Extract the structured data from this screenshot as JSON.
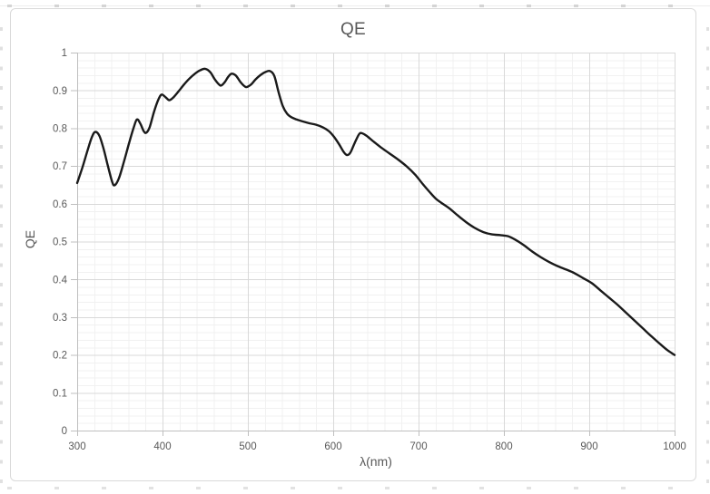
{
  "chart_data": {
    "type": "line",
    "title": "QE",
    "xlabel": "λ(nm)",
    "ylabel": "QE",
    "xlim": [
      300,
      1000
    ],
    "ylim": [
      0,
      1
    ],
    "x_major_ticks": [
      300,
      400,
      500,
      600,
      700,
      800,
      900,
      1000
    ],
    "x_tick_labels": [
      "300",
      "400",
      "500",
      "600",
      "700",
      "800",
      "900",
      "1000"
    ],
    "y_major_ticks": [
      0,
      0.1,
      0.2,
      0.3,
      0.4,
      0.5,
      0.6,
      0.7,
      0.8,
      0.9,
      1
    ],
    "y_tick_labels": [
      "0",
      "0.1",
      "0.2",
      "0.3",
      "0.4",
      "0.5",
      "0.6",
      "0.7",
      "0.8",
      "0.9",
      "1"
    ],
    "x_minor_step": 20,
    "y_minor_step": 0.02,
    "grid": "major and minor, both axes",
    "legend": "none",
    "series": [
      {
        "name": "QE",
        "color": "#1a1a1a",
        "x": [
          300,
          306,
          312,
          317,
          321,
          326,
          331,
          336,
          341,
          344,
          349,
          355,
          361,
          366,
          370,
          374,
          378,
          381,
          385,
          390,
          395,
          399,
          404,
          408,
          413,
          419,
          425,
          431,
          438,
          444,
          450,
          456,
          461,
          466,
          469,
          473,
          477,
          481,
          486,
          491,
          496,
          499,
          504,
          509,
          515,
          521,
          526,
          531,
          536,
          541,
          546,
          551,
          557,
          564,
          572,
          580,
          588,
          595,
          601,
          607,
          612,
          616,
          620,
          625,
          630,
          633,
          639,
          647,
          656,
          666,
          676,
          686,
          696,
          705,
          713,
          720,
          727,
          736,
          746,
          756,
          766,
          776,
          786,
          796,
          805,
          814,
          823,
          833,
          843,
          853,
          863,
          873,
          883,
          893,
          903,
          913,
          923,
          933,
          943,
          953,
          963,
          973,
          983,
          992,
          1000
        ],
        "y": [
          0.655,
          0.695,
          0.74,
          0.775,
          0.79,
          0.78,
          0.745,
          0.7,
          0.658,
          0.649,
          0.668,
          0.713,
          0.762,
          0.8,
          0.823,
          0.812,
          0.792,
          0.788,
          0.803,
          0.843,
          0.875,
          0.889,
          0.881,
          0.874,
          0.882,
          0.898,
          0.915,
          0.93,
          0.944,
          0.953,
          0.957,
          0.948,
          0.93,
          0.916,
          0.913,
          0.922,
          0.936,
          0.944,
          0.939,
          0.923,
          0.911,
          0.909,
          0.916,
          0.929,
          0.941,
          0.949,
          0.951,
          0.938,
          0.895,
          0.858,
          0.838,
          0.829,
          0.823,
          0.818,
          0.813,
          0.809,
          0.802,
          0.792,
          0.777,
          0.757,
          0.738,
          0.729,
          0.735,
          0.76,
          0.783,
          0.787,
          0.78,
          0.765,
          0.749,
          0.733,
          0.717,
          0.699,
          0.677,
          0.652,
          0.631,
          0.614,
          0.602,
          0.588,
          0.569,
          0.551,
          0.536,
          0.525,
          0.519,
          0.517,
          0.514,
          0.504,
          0.491,
          0.474,
          0.459,
          0.446,
          0.435,
          0.426,
          0.416,
          0.403,
          0.39,
          0.371,
          0.352,
          0.333,
          0.312,
          0.291,
          0.27,
          0.249,
          0.229,
          0.212,
          0.2
        ]
      }
    ],
    "style": {
      "curve_color": "#1a1a1a",
      "curve_width": 2.4,
      "major_grid_color": "#d9d9d9",
      "minor_grid_color": "#f1f1f1",
      "axis_color": "#bfbfbf",
      "text_color": "#595959",
      "frame_border_color": "#d9d9d9",
      "background": "#ffffff"
    }
  }
}
